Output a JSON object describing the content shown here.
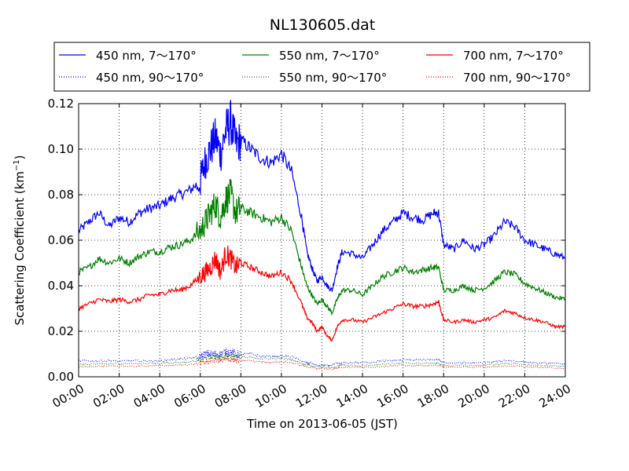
{
  "chart_data": {
    "type": "line",
    "title": "NL130605.dat",
    "xlabel": "Time on 2013-06-05 (JST)",
    "ylabel_main": "Scattering Coefficient (km",
    "ylabel_sup": "−1",
    "ylabel_end": ")",
    "xlim": [
      0,
      24
    ],
    "ylim": [
      0,
      0.12
    ],
    "x_ticks": [
      0,
      2,
      4,
      6,
      8,
      10,
      12,
      14,
      16,
      18,
      20,
      22,
      24
    ],
    "x_tick_labels": [
      "00:00",
      "02:00",
      "04:00",
      "06:00",
      "08:00",
      "10:00",
      "12:00",
      "14:00",
      "16:00",
      "18:00",
      "20:00",
      "22:00",
      "24:00"
    ],
    "y_ticks": [
      0,
      0.02,
      0.04,
      0.06,
      0.08,
      0.1,
      0.12
    ],
    "y_tick_labels": [
      "0.00",
      "0.02",
      "0.04",
      "0.06",
      "0.08",
      "0.10",
      "0.12"
    ],
    "grid": true,
    "legend_placement": "top, above plot, 3 columns",
    "x": [
      0,
      0.5,
      1,
      1.5,
      2,
      2.5,
      3,
      3.5,
      4,
      4.5,
      5,
      5.5,
      6,
      6.25,
      6.5,
      6.75,
      7,
      7.25,
      7.5,
      7.75,
      8,
      8.5,
      9,
      9.5,
      10,
      10.5,
      11,
      11.25,
      11.5,
      11.75,
      12,
      12.25,
      12.5,
      12.75,
      13,
      13.5,
      14,
      14.5,
      15,
      15.5,
      16,
      16.5,
      17,
      17.5,
      17.75,
      18,
      18.5,
      19,
      19.5,
      20,
      20.5,
      21,
      21.5,
      22,
      22.5,
      23,
      23.5,
      24
    ],
    "series": [
      {
        "name": "450 nm, 7～170°",
        "color": "#0000ff",
        "style": "solid",
        "values": [
          0.064,
          0.068,
          0.072,
          0.066,
          0.07,
          0.068,
          0.072,
          0.074,
          0.075,
          0.078,
          0.08,
          0.082,
          0.086,
          0.095,
          0.1,
          0.105,
          0.098,
          0.108,
          0.112,
          0.102,
          0.104,
          0.1,
          0.096,
          0.094,
          0.098,
          0.09,
          0.07,
          0.055,
          0.048,
          0.042,
          0.044,
          0.04,
          0.038,
          0.048,
          0.055,
          0.054,
          0.052,
          0.058,
          0.064,
          0.068,
          0.072,
          0.07,
          0.069,
          0.072,
          0.072,
          0.058,
          0.056,
          0.06,
          0.056,
          0.058,
          0.062,
          0.068,
          0.066,
          0.06,
          0.058,
          0.056,
          0.054,
          0.052
        ]
      },
      {
        "name": "550 nm, 7～170°",
        "color": "#008000",
        "style": "solid",
        "values": [
          0.046,
          0.048,
          0.052,
          0.05,
          0.052,
          0.05,
          0.053,
          0.055,
          0.055,
          0.057,
          0.058,
          0.06,
          0.064,
          0.068,
          0.072,
          0.076,
          0.07,
          0.078,
          0.08,
          0.072,
          0.074,
          0.072,
          0.07,
          0.068,
          0.07,
          0.064,
          0.048,
          0.04,
          0.036,
          0.032,
          0.034,
          0.031,
          0.028,
          0.034,
          0.038,
          0.038,
          0.036,
          0.04,
          0.044,
          0.046,
          0.048,
          0.046,
          0.047,
          0.048,
          0.048,
          0.038,
          0.038,
          0.04,
          0.038,
          0.039,
          0.042,
          0.046,
          0.045,
          0.041,
          0.039,
          0.037,
          0.035,
          0.034
        ]
      },
      {
        "name": "700 nm, 7～170°",
        "color": "#ff0000",
        "style": "solid",
        "values": [
          0.03,
          0.032,
          0.034,
          0.033,
          0.034,
          0.033,
          0.034,
          0.036,
          0.036,
          0.038,
          0.038,
          0.04,
          0.044,
          0.046,
          0.048,
          0.052,
          0.046,
          0.054,
          0.052,
          0.048,
          0.05,
          0.048,
          0.046,
          0.044,
          0.046,
          0.042,
          0.032,
          0.026,
          0.024,
          0.02,
          0.022,
          0.018,
          0.016,
          0.022,
          0.025,
          0.025,
          0.024,
          0.026,
          0.028,
          0.03,
          0.032,
          0.031,
          0.031,
          0.032,
          0.033,
          0.025,
          0.024,
          0.025,
          0.024,
          0.025,
          0.026,
          0.029,
          0.028,
          0.026,
          0.025,
          0.024,
          0.022,
          0.022
        ]
      },
      {
        "name": "450 nm, 90～170°",
        "color": "#0000ff",
        "style": "dotted",
        "values": [
          0.007,
          0.007,
          0.007,
          0.007,
          0.007,
          0.007,
          0.007,
          0.007,
          0.007,
          0.0075,
          0.0078,
          0.008,
          0.009,
          0.01,
          0.01,
          0.01,
          0.01,
          0.011,
          0.011,
          0.01,
          0.01,
          0.01,
          0.009,
          0.009,
          0.009,
          0.009,
          0.007,
          0.006,
          0.006,
          0.005,
          0.005,
          0.005,
          0.005,
          0.006,
          0.006,
          0.0062,
          0.0062,
          0.0065,
          0.007,
          0.0072,
          0.0075,
          0.0075,
          0.0074,
          0.0075,
          0.0075,
          0.0062,
          0.006,
          0.0062,
          0.006,
          0.0062,
          0.0065,
          0.0072,
          0.007,
          0.0065,
          0.006,
          0.006,
          0.0058,
          0.0056
        ]
      },
      {
        "name": "550 nm, 90～170°",
        "color": "#008000",
        "style": "dotted",
        "values": [
          0.0055,
          0.0055,
          0.0058,
          0.0056,
          0.0058,
          0.0057,
          0.0058,
          0.006,
          0.006,
          0.0062,
          0.0064,
          0.0066,
          0.0075,
          0.008,
          0.0085,
          0.009,
          0.0085,
          0.0092,
          0.0092,
          0.0085,
          0.0086,
          0.0084,
          0.008,
          0.0078,
          0.008,
          0.0076,
          0.006,
          0.0052,
          0.0048,
          0.0044,
          0.0045,
          0.0042,
          0.004,
          0.0045,
          0.005,
          0.005,
          0.0049,
          0.0052,
          0.0056,
          0.0058,
          0.006,
          0.0059,
          0.0059,
          0.006,
          0.006,
          0.005,
          0.005,
          0.0051,
          0.005,
          0.0051,
          0.0054,
          0.0058,
          0.0057,
          0.0053,
          0.005,
          0.0049,
          0.0047,
          0.0046
        ]
      },
      {
        "name": "700 nm, 90～170°",
        "color": "#ff0000",
        "style": "dotted",
        "values": [
          0.0045,
          0.0045,
          0.0047,
          0.0046,
          0.0047,
          0.0046,
          0.0047,
          0.0049,
          0.0049,
          0.005,
          0.0052,
          0.0054,
          0.006,
          0.0065,
          0.007,
          0.0074,
          0.007,
          0.0076,
          0.0076,
          0.007,
          0.0071,
          0.007,
          0.0066,
          0.0064,
          0.0066,
          0.0062,
          0.005,
          0.0044,
          0.004,
          0.0036,
          0.0038,
          0.0035,
          0.0033,
          0.0038,
          0.0042,
          0.0042,
          0.0041,
          0.0043,
          0.0046,
          0.0048,
          0.005,
          0.0049,
          0.0049,
          0.005,
          0.005,
          0.0042,
          0.0042,
          0.0043,
          0.0042,
          0.0043,
          0.0045,
          0.0048,
          0.0047,
          0.0044,
          0.0042,
          0.0041,
          0.0039,
          0.0038
        ]
      }
    ]
  }
}
